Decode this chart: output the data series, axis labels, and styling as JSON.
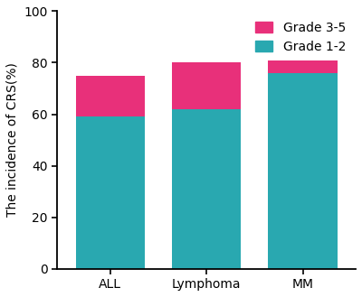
{
  "categories": [
    "ALL",
    "Lymphoma",
    "MM"
  ],
  "grade_1_2": [
    59,
    62,
    76
  ],
  "grade_3_5": [
    16,
    18,
    5
  ],
  "color_grade_1_2": "#29A8B0",
  "color_grade_3_5": "#E8307A",
  "ylabel": "The incidence of CRS(%)",
  "ylim": [
    0,
    100
  ],
  "yticks": [
    0,
    20,
    40,
    60,
    80,
    100
  ],
  "legend_grade_3_5": "Grade 3-5",
  "legend_grade_1_2": "Grade 1-2",
  "bar_width": 0.72,
  "background_color": "#ffffff",
  "spine_color": "#000000",
  "tick_fontsize": 10,
  "label_fontsize": 10,
  "legend_fontsize": 10
}
